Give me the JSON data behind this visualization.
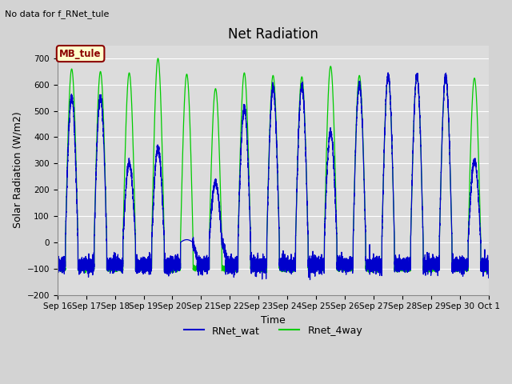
{
  "title": "Net Radiation",
  "no_data_text": "No data for f_RNet_tule",
  "ylabel": "Solar Radiation (W/m2)",
  "xlabel": "Time",
  "ylim": [
    -200,
    750
  ],
  "yticks": [
    -200,
    -100,
    0,
    100,
    200,
    300,
    400,
    500,
    600,
    700
  ],
  "legend_labels": [
    "RNet_wat",
    "Rnet_4way"
  ],
  "annotation_text": "MB_tule",
  "annotation_bg": "#ffffcc",
  "annotation_border": "#8b0000",
  "n_days": 15,
  "pts_per_day": 480,
  "plot_bg": "#dcdcdc",
  "fig_bg": "#d3d3d3",
  "grid_color": "#ffffff",
  "line_color_blue": "#0000cc",
  "line_color_green": "#00cc00",
  "peaks_green": [
    660,
    650,
    645,
    700,
    640,
    585,
    645,
    635,
    630,
    670,
    635,
    635,
    635,
    630,
    625
  ],
  "peaks_blue": [
    555,
    555,
    300,
    360,
    10,
    230,
    510,
    590,
    595,
    420,
    600,
    635,
    635,
    630,
    310
  ],
  "night_base": -85,
  "tick_fontsize": 7.5,
  "label_fontsize": 9,
  "title_fontsize": 12
}
